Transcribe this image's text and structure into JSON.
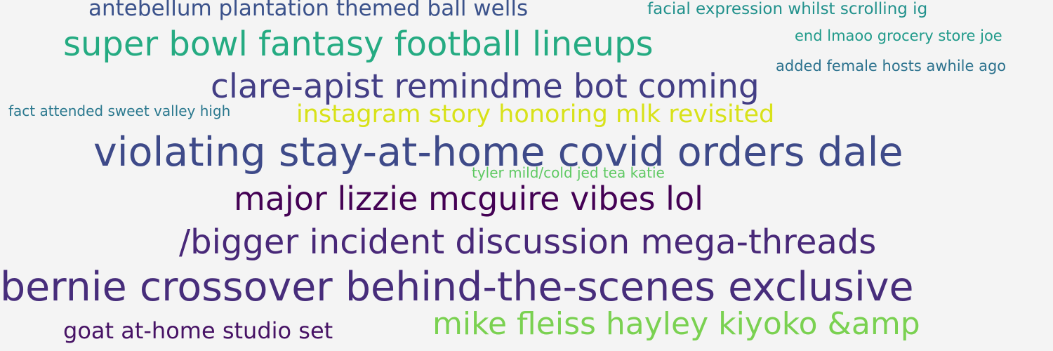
{
  "phrases": [
    {
      "text": "antebellum plantation themed ball wells",
      "color": "#3b528b"
    },
    {
      "text": "facial expression whilst scrolling ig",
      "color": "#21918c"
    },
    {
      "text": "super bowl fantasy football lineups",
      "color": "#25ab82"
    },
    {
      "text": "end lmaoo grocery store joe",
      "color": "#1f9a8a"
    },
    {
      "text": "added female hosts awhile ago",
      "color": "#2c728e"
    },
    {
      "text": "clare-apist remindme bot coming",
      "color": "#433e85"
    },
    {
      "text": "fact attended sweet valley high",
      "color": "#2a788e"
    },
    {
      "text": "instagram story honoring mlk revisited",
      "color": "#d8e219"
    },
    {
      "text": "violating stay-at-home covid orders dale",
      "color": "#3e4a89"
    },
    {
      "text": "tyler mild/cold jed tea katie",
      "color": "#5ec962"
    },
    {
      "text": "major lizzie mcguire vibes lol",
      "color": "#440154"
    },
    {
      "text": "/bigger incident discussion mega-threads",
      "color": "#482878"
    },
    {
      "text": "bernie crossover behind-the-scenes exclusive",
      "color": "#472d7b"
    },
    {
      "text": "goat at-home studio set",
      "color": "#471365"
    },
    {
      "text": "mike fleiss hayley kiyoko &amp",
      "color": "#7ad151"
    }
  ]
}
